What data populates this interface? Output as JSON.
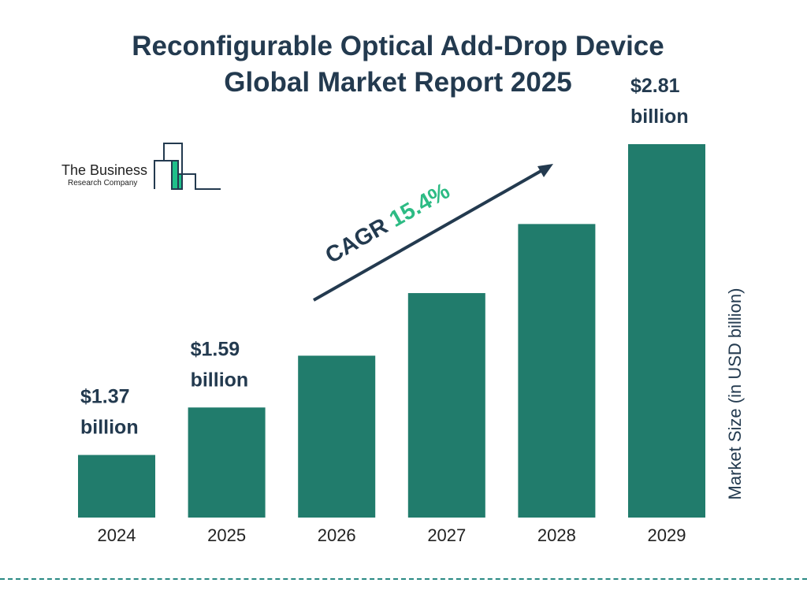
{
  "title_line1": "Reconfigurable Optical Add-Drop Device",
  "title_line2": "Global Market Report 2025",
  "logo": {
    "line1": "The Business",
    "line2": "Research Company"
  },
  "colors": {
    "bar": "#217c6c",
    "text": "#233a4f",
    "cagr": "#2dbb84",
    "logo_green": "#1fbf8a",
    "divider": "#2a8a84"
  },
  "chart_data": {
    "type": "bar",
    "categories": [
      "2024",
      "2025",
      "2026",
      "2027",
      "2028",
      "2029"
    ],
    "values": [
      1.37,
      1.59,
      1.83,
      2.12,
      2.44,
      2.81
    ],
    "data_labels": [
      {
        "amount": "$1.37",
        "unit": "billion"
      },
      {
        "amount": "$1.59",
        "unit": "billion"
      },
      null,
      null,
      null,
      {
        "amount": "$2.81",
        "unit": "billion"
      }
    ],
    "ylabel": "Market Size (in USD billion)",
    "xlabel": "",
    "grid": false,
    "annotation": {
      "label": "CAGR",
      "value": "15.4%"
    }
  }
}
